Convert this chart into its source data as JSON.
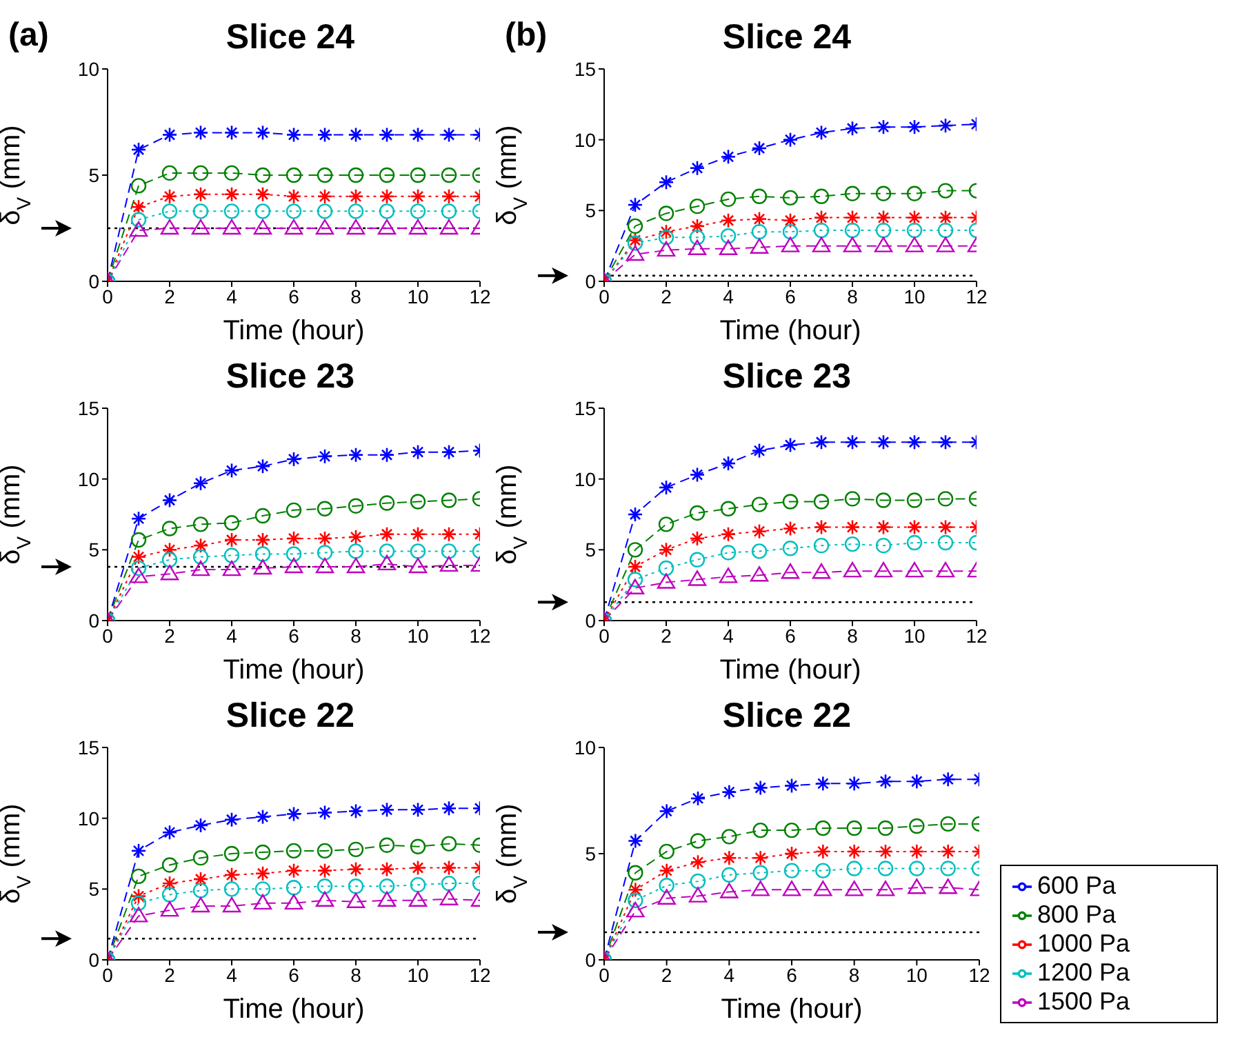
{
  "chart_data": [
    {
      "type": "line",
      "title": "Slice 24",
      "xlabel": "Time (hour)",
      "ylabel": "δ$_{V}$ (mm)",
      "annotations": [
        "(a)"
      ],
      "x": [
        0,
        1,
        2,
        3,
        4,
        5,
        6,
        7,
        8,
        9,
        10,
        11,
        12
      ],
      "xlim": [
        0,
        12
      ],
      "xticks": [
        0,
        2,
        4,
        6,
        8,
        10,
        12
      ],
      "ylim": [
        0,
        10
      ],
      "yticks": [
        0,
        5,
        10
      ],
      "grid": false,
      "legend": false,
      "ref_lines": [
        {
          "axis": "y",
          "value": 2.5,
          "color": "#000000",
          "line_style": "dotted"
        }
      ],
      "series": [
        {
          "color": "#0000ff",
          "marker": "cross",
          "line_style": "dashed",
          "values": [
            0,
            6.2,
            6.9,
            7.0,
            7.0,
            7.0,
            6.9,
            6.9,
            6.9,
            6.9,
            6.9,
            6.9,
            6.9
          ]
        },
        {
          "color": "#008000",
          "marker": "circle",
          "line_style": "dashed",
          "values": [
            0,
            4.5,
            5.1,
            5.1,
            5.1,
            5.0,
            5.0,
            5.0,
            5.0,
            5.0,
            5.0,
            5.0,
            5.0
          ]
        },
        {
          "color": "#ff0000",
          "marker": "cross",
          "line_style": "dotted",
          "values": [
            0,
            3.5,
            4.0,
            4.1,
            4.1,
            4.1,
            4.0,
            4.0,
            4.0,
            4.0,
            4.0,
            4.0,
            4.0
          ]
        },
        {
          "color": "#00bfbf",
          "marker": "circle",
          "line_style": "dotted",
          "values": [
            0,
            2.9,
            3.3,
            3.3,
            3.3,
            3.3,
            3.3,
            3.3,
            3.3,
            3.3,
            3.3,
            3.3,
            3.3
          ]
        },
        {
          "color": "#bf00bf",
          "marker": "triangle",
          "line_style": "dashed",
          "values": [
            0,
            2.4,
            2.5,
            2.5,
            2.5,
            2.5,
            2.5,
            2.5,
            2.5,
            2.5,
            2.5,
            2.5,
            2.5
          ]
        }
      ]
    },
    {
      "type": "line",
      "title": "Slice 24",
      "xlabel": "Time (hour)",
      "ylabel": "δ$_{V}$ (mm)",
      "annotations": [
        "(b)"
      ],
      "x": [
        0,
        1,
        2,
        3,
        4,
        5,
        6,
        7,
        8,
        9,
        10,
        11,
        12
      ],
      "xlim": [
        0,
        12
      ],
      "xticks": [
        0,
        2,
        4,
        6,
        8,
        10,
        12
      ],
      "ylim": [
        0,
        15
      ],
      "yticks": [
        0,
        5,
        10,
        15
      ],
      "grid": false,
      "legend": false,
      "ref_lines": [
        {
          "axis": "y",
          "value": 0.4,
          "color": "#000000",
          "line_style": "dotted"
        }
      ],
      "series": [
        {
          "color": "#0000ff",
          "marker": "cross",
          "line_style": "dashed",
          "values": [
            0,
            5.4,
            7.0,
            8.0,
            8.8,
            9.4,
            10.0,
            10.5,
            10.8,
            10.9,
            10.9,
            11.0,
            11.1
          ]
        },
        {
          "color": "#008000",
          "marker": "circle",
          "line_style": "dashed",
          "values": [
            0,
            3.9,
            4.8,
            5.3,
            5.8,
            6.0,
            5.9,
            6.0,
            6.2,
            6.2,
            6.2,
            6.4,
            6.4
          ]
        },
        {
          "color": "#ff0000",
          "marker": "cross",
          "line_style": "dotted",
          "values": [
            0,
            2.9,
            3.5,
            3.9,
            4.3,
            4.4,
            4.3,
            4.5,
            4.5,
            4.5,
            4.5,
            4.5,
            4.5
          ]
        },
        {
          "color": "#00bfbf",
          "marker": "circle",
          "line_style": "dotted",
          "values": [
            0,
            2.7,
            3.1,
            3.1,
            3.2,
            3.5,
            3.5,
            3.6,
            3.6,
            3.6,
            3.6,
            3.6,
            3.6
          ]
        },
        {
          "color": "#bf00bf",
          "marker": "triangle",
          "line_style": "dashed",
          "values": [
            0,
            1.9,
            2.2,
            2.3,
            2.3,
            2.4,
            2.5,
            2.5,
            2.5,
            2.5,
            2.5,
            2.5,
            2.5
          ]
        }
      ]
    },
    {
      "type": "line",
      "title": "Slice 23",
      "xlabel": "Time (hour)",
      "ylabel": "δ$_{V}$ (mm)",
      "x": [
        0,
        1,
        2,
        3,
        4,
        5,
        6,
        7,
        8,
        9,
        10,
        11,
        12
      ],
      "xlim": [
        0,
        12
      ],
      "xticks": [
        0,
        2,
        4,
        6,
        8,
        10,
        12
      ],
      "ylim": [
        0,
        15
      ],
      "yticks": [
        0,
        5,
        10,
        15
      ],
      "grid": false,
      "legend": false,
      "ref_lines": [
        {
          "axis": "y",
          "value": 3.8,
          "color": "#000000",
          "line_style": "dotted"
        }
      ],
      "series": [
        {
          "color": "#0000ff",
          "marker": "cross",
          "line_style": "dashed",
          "values": [
            0,
            7.2,
            8.5,
            9.7,
            10.6,
            10.9,
            11.4,
            11.6,
            11.7,
            11.7,
            11.9,
            11.9,
            12.0
          ]
        },
        {
          "color": "#008000",
          "marker": "circle",
          "line_style": "dashed",
          "values": [
            0,
            5.7,
            6.5,
            6.8,
            6.9,
            7.4,
            7.8,
            7.9,
            8.1,
            8.3,
            8.4,
            8.5,
            8.6
          ]
        },
        {
          "color": "#ff0000",
          "marker": "cross",
          "line_style": "dotted",
          "values": [
            0,
            4.5,
            5.0,
            5.3,
            5.7,
            5.7,
            5.8,
            5.8,
            5.9,
            6.1,
            6.1,
            6.1,
            6.1
          ]
        },
        {
          "color": "#00bfbf",
          "marker": "circle",
          "line_style": "dotted",
          "values": [
            0,
            3.7,
            4.3,
            4.5,
            4.6,
            4.7,
            4.7,
            4.8,
            4.9,
            4.9,
            4.9,
            4.9,
            4.9
          ]
        },
        {
          "color": "#bf00bf",
          "marker": "triangle",
          "line_style": "dashed",
          "values": [
            0,
            3.1,
            3.3,
            3.6,
            3.6,
            3.7,
            3.8,
            3.8,
            3.8,
            4.0,
            3.8,
            3.9,
            3.9
          ]
        }
      ]
    },
    {
      "type": "line",
      "title": "Slice 23",
      "xlabel": "Time (hour)",
      "ylabel": "δ$_{V}$ (mm)",
      "x": [
        0,
        1,
        2,
        3,
        4,
        5,
        6,
        7,
        8,
        9,
        10,
        11,
        12
      ],
      "xlim": [
        0,
        12
      ],
      "xticks": [
        0,
        2,
        4,
        6,
        8,
        10,
        12
      ],
      "ylim": [
        0,
        15
      ],
      "yticks": [
        0,
        5,
        10,
        15
      ],
      "grid": false,
      "legend": false,
      "ref_lines": [
        {
          "axis": "y",
          "value": 1.3,
          "color": "#000000",
          "line_style": "dotted"
        }
      ],
      "series": [
        {
          "color": "#0000ff",
          "marker": "cross",
          "line_style": "dashed",
          "values": [
            0,
            7.5,
            9.4,
            10.3,
            11.1,
            12.0,
            12.4,
            12.6,
            12.6,
            12.6,
            12.6,
            12.6,
            12.6
          ]
        },
        {
          "color": "#008000",
          "marker": "circle",
          "line_style": "dashed",
          "values": [
            0,
            5.0,
            6.8,
            7.6,
            7.9,
            8.2,
            8.4,
            8.4,
            8.6,
            8.5,
            8.5,
            8.6,
            8.6
          ]
        },
        {
          "color": "#ff0000",
          "marker": "cross",
          "line_style": "dotted",
          "values": [
            0,
            3.8,
            5.0,
            5.8,
            6.1,
            6.3,
            6.5,
            6.6,
            6.6,
            6.6,
            6.6,
            6.6,
            6.6
          ]
        },
        {
          "color": "#00bfbf",
          "marker": "circle",
          "line_style": "dotted",
          "values": [
            0,
            2.9,
            3.7,
            4.3,
            4.8,
            4.9,
            5.1,
            5.3,
            5.4,
            5.3,
            5.5,
            5.5,
            5.5
          ]
        },
        {
          "color": "#bf00bf",
          "marker": "triangle",
          "line_style": "dashed",
          "values": [
            0,
            2.3,
            2.7,
            2.9,
            3.1,
            3.2,
            3.4,
            3.4,
            3.5,
            3.5,
            3.5,
            3.5,
            3.5
          ]
        }
      ]
    },
    {
      "type": "line",
      "title": "Slice 22",
      "xlabel": "Time (hour)",
      "ylabel": "δ$_{V}$ (mm)",
      "x": [
        0,
        1,
        2,
        3,
        4,
        5,
        6,
        7,
        8,
        9,
        10,
        11,
        12
      ],
      "xlim": [
        0,
        12
      ],
      "xticks": [
        0,
        2,
        4,
        6,
        8,
        10,
        12
      ],
      "ylim": [
        0,
        15
      ],
      "yticks": [
        0,
        5,
        10,
        15
      ],
      "grid": false,
      "legend": false,
      "ref_lines": [
        {
          "axis": "y",
          "value": 1.5,
          "color": "#000000",
          "line_style": "dotted"
        }
      ],
      "series": [
        {
          "color": "#0000ff",
          "marker": "cross",
          "line_style": "dashed",
          "values": [
            0,
            7.7,
            9.0,
            9.5,
            9.9,
            10.1,
            10.3,
            10.4,
            10.5,
            10.6,
            10.6,
            10.7,
            10.7
          ]
        },
        {
          "color": "#008000",
          "marker": "circle",
          "line_style": "dashed",
          "values": [
            0,
            5.9,
            6.7,
            7.2,
            7.5,
            7.6,
            7.7,
            7.7,
            7.8,
            8.1,
            8.0,
            8.2,
            8.1
          ]
        },
        {
          "color": "#ff0000",
          "marker": "cross",
          "line_style": "dotted",
          "values": [
            0,
            4.5,
            5.4,
            5.7,
            6.0,
            6.1,
            6.3,
            6.3,
            6.4,
            6.4,
            6.5,
            6.5,
            6.5
          ]
        },
        {
          "color": "#00bfbf",
          "marker": "circle",
          "line_style": "dotted",
          "values": [
            0,
            4.0,
            4.6,
            4.9,
            5.0,
            5.0,
            5.1,
            5.2,
            5.2,
            5.2,
            5.3,
            5.4,
            5.4
          ]
        },
        {
          "color": "#bf00bf",
          "marker": "triangle",
          "line_style": "dashed",
          "values": [
            0,
            3.1,
            3.5,
            3.8,
            3.8,
            4.0,
            4.0,
            4.2,
            4.1,
            4.2,
            4.2,
            4.3,
            4.2
          ]
        }
      ]
    },
    {
      "type": "line",
      "title": "Slice 22",
      "xlabel": "Time (hour)",
      "ylabel": "δ$_{V}$ (mm)",
      "x": [
        0,
        1,
        2,
        3,
        4,
        5,
        6,
        7,
        8,
        9,
        10,
        11,
        12
      ],
      "xlim": [
        0,
        12
      ],
      "xticks": [
        0,
        2,
        4,
        6,
        8,
        10,
        12
      ],
      "ylim": [
        0,
        10
      ],
      "yticks": [
        0,
        5,
        10
      ],
      "grid": false,
      "legend": "bottom right",
      "ref_lines": [
        {
          "axis": "y",
          "value": 1.3,
          "color": "#000000",
          "line_style": "dotted"
        }
      ],
      "series": [
        {
          "name": "600 Pa",
          "color": "#0000ff",
          "marker": "cross",
          "line_style": "dashed",
          "values": [
            0,
            5.6,
            7.0,
            7.6,
            7.9,
            8.1,
            8.2,
            8.3,
            8.3,
            8.4,
            8.4,
            8.5,
            8.5
          ]
        },
        {
          "name": "800 Pa",
          "color": "#008000",
          "marker": "circle",
          "line_style": "dashed",
          "values": [
            0,
            4.1,
            5.1,
            5.6,
            5.8,
            6.1,
            6.1,
            6.2,
            6.2,
            6.2,
            6.3,
            6.4,
            6.4
          ]
        },
        {
          "name": "1000 Pa",
          "color": "#ff0000",
          "marker": "cross",
          "line_style": "dotted",
          "values": [
            0,
            3.3,
            4.2,
            4.6,
            4.8,
            4.8,
            5.0,
            5.1,
            5.1,
            5.1,
            5.1,
            5.1,
            5.1
          ]
        },
        {
          "name": "1200 Pa",
          "color": "#00bfbf",
          "marker": "circle",
          "line_style": "dotted",
          "values": [
            0,
            2.8,
            3.5,
            3.7,
            4.0,
            4.1,
            4.2,
            4.2,
            4.3,
            4.3,
            4.3,
            4.3,
            4.3
          ]
        },
        {
          "name": "1500 Pa",
          "color": "#bf00bf",
          "marker": "triangle",
          "line_style": "dashed",
          "values": [
            0,
            2.3,
            2.9,
            3.0,
            3.2,
            3.3,
            3.3,
            3.3,
            3.3,
            3.3,
            3.4,
            3.4,
            3.3
          ]
        }
      ]
    }
  ]
}
